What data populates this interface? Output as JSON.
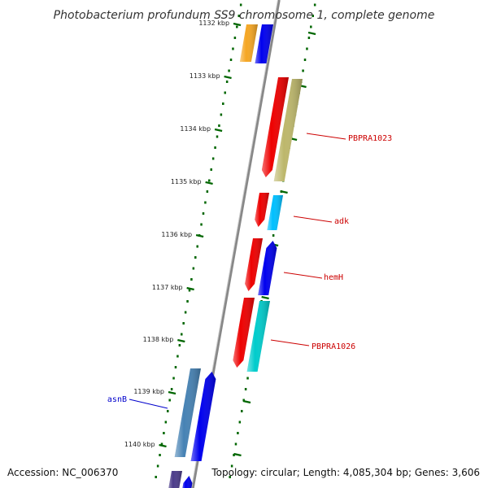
{
  "title": "Photobacterium profundum SS9 chromosome 1, complete genome",
  "footer": {
    "accession": "Accession: NC_006370",
    "summary": "Topology: circular; Length: 4,085,304 bp; Genes: 3,606"
  },
  "ticks": [
    "1132 kbp",
    "1133 kbp",
    "1134 kbp",
    "1135 kbp",
    "1136 kbp",
    "1137 kbp",
    "1138 kbp",
    "1139 kbp",
    "1140 kbp"
  ],
  "genes": [
    {
      "label": "PBPRA1023",
      "color": "#cc0000"
    },
    {
      "label": "adk",
      "color": "#cc0000"
    },
    {
      "label": "hemH",
      "color": "#cc0000"
    },
    {
      "label": "PBPRA1026",
      "color": "#cc0000"
    },
    {
      "label": "asnB",
      "color": "#0000cc"
    }
  ],
  "colors": {
    "backbone": "#888888",
    "tick": "#006600",
    "orange": "#f5a623",
    "blue": "#0000ee",
    "red": "#ee0000",
    "khaki": "#bdb76b",
    "sky": "#00bfff",
    "cyan": "#00cccc",
    "steel": "#4682b4",
    "purple": "#4b3b8a"
  }
}
